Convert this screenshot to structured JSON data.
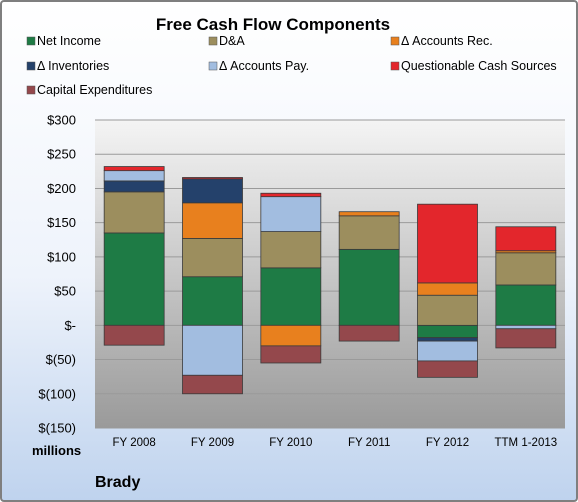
{
  "chart_data": {
    "type": "bar",
    "stacked": true,
    "title": "Free Cash Flow Components",
    "categories": [
      "FY 2008",
      "FY 2009",
      "FY 2010",
      "FY 2011",
      "FY 2012",
      "TTM 1-2013"
    ],
    "ylim": [
      -150,
      300
    ],
    "yticks": [
      "$300",
      "$250",
      "$200",
      "$150",
      "$100",
      "$50",
      "$-",
      "$(50)",
      "$(100)",
      "$(150)"
    ],
    "units_label": "millions",
    "footer": "Brady",
    "grid": true,
    "legend_position": "top",
    "series": [
      {
        "name": "Net Income",
        "color": "#1e7b45",
        "values": [
          135,
          71,
          84,
          111,
          -18,
          59
        ]
      },
      {
        "name": "D&A",
        "color": "#9c8e5e",
        "values": [
          60,
          56,
          53,
          49,
          44,
          47
        ]
      },
      {
        "name": "Δ Accounts Rec.",
        "color": "#e8801e",
        "values": [
          0,
          52,
          -30,
          6,
          18,
          3
        ]
      },
      {
        "name": "Δ Inventories",
        "color": "#24416b",
        "values": [
          16,
          35,
          0,
          0,
          -5,
          0
        ]
      },
      {
        "name": "Δ Accounts Pay.",
        "color": "#a2bde0",
        "values": [
          15,
          -73,
          51,
          0,
          -29,
          -5
        ]
      },
      {
        "name": "Questionable Cash Sources",
        "color": "#e3262c",
        "values": [
          6,
          2,
          5,
          0,
          115,
          35
        ]
      },
      {
        "name": "Capital Expenditures",
        "color": "#94484c",
        "values": [
          -29,
          -27,
          -25,
          -23,
          -24,
          -28
        ]
      }
    ]
  }
}
